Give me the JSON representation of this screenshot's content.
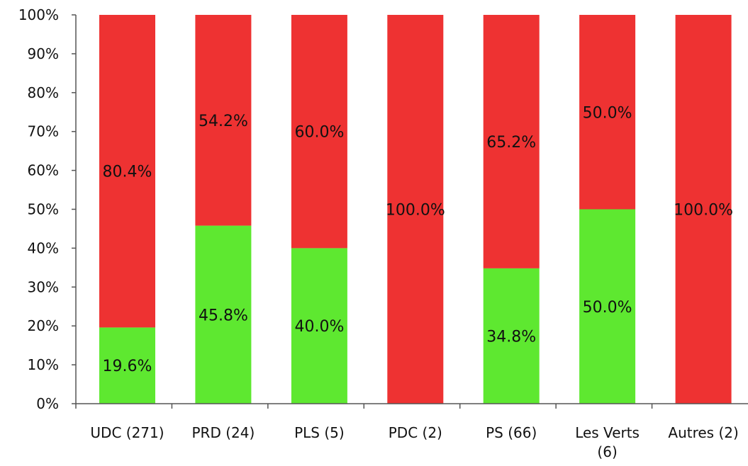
{
  "chart_data": {
    "type": "bar",
    "stacked": true,
    "stack_mode": "percent",
    "title": "",
    "xlabel": "",
    "ylabel": "",
    "ylim": [
      0,
      100
    ],
    "y_ticks": [
      "0%",
      "10%",
      "20%",
      "30%",
      "40%",
      "50%",
      "60%",
      "70%",
      "80%",
      "90%",
      "100%"
    ],
    "grid": false,
    "legend": "none",
    "categories": [
      [
        "UDC (271)"
      ],
      [
        "PRD (24)"
      ],
      [
        "PLS (5)"
      ],
      [
        "PDC (2)"
      ],
      [
        "PS (66)"
      ],
      [
        "Les Verts",
        "(6)"
      ],
      [
        "Autres (2)"
      ]
    ],
    "series": [
      {
        "color": "#5ee830",
        "values": [
          19.6,
          45.8,
          40.0,
          0,
          34.8,
          50.0,
          0
        ],
        "labels": [
          "19.6%",
          "45.8%",
          "40.0%",
          "",
          "34.8%",
          "50.0%",
          ""
        ]
      },
      {
        "color": "#ee3232",
        "values": [
          80.4,
          54.2,
          60.0,
          100.0,
          65.2,
          50.0,
          100.0
        ],
        "labels": [
          "80.4%",
          "54.2%",
          "60.0%",
          "100.0%",
          "65.2%",
          "50.0%",
          "100.0%"
        ]
      }
    ],
    "axis_color": "#555555"
  }
}
